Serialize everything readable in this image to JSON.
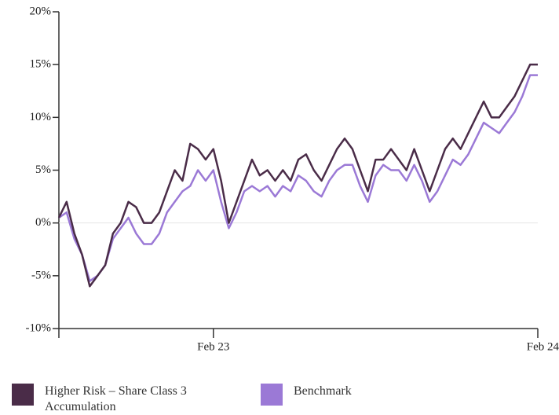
{
  "chart_data": {
    "type": "line",
    "categories": [
      null,
      null,
      null,
      null,
      null,
      null,
      null,
      null,
      null,
      null,
      null,
      null,
      null,
      null,
      null,
      null,
      null,
      null,
      null,
      null,
      "Feb 23",
      null,
      null,
      null,
      null,
      null,
      null,
      null,
      null,
      null,
      null,
      null,
      null,
      null,
      null,
      null,
      null,
      null,
      null,
      null,
      null,
      null,
      null,
      null,
      null,
      null,
      null,
      null,
      null,
      null,
      null,
      null,
      null,
      null,
      null,
      null,
      null,
      null,
      null,
      null,
      null,
      null,
      "Feb 24"
    ],
    "series": [
      {
        "name": "Higher Risk – Share Class 3 Accumulation",
        "color": "#4a2c48",
        "values": [
          0.5,
          2,
          -1,
          -3,
          -6,
          -5,
          -4,
          -1,
          0,
          2,
          1.5,
          0,
          0,
          1,
          3,
          5,
          4,
          7.5,
          7,
          6,
          7,
          4,
          0,
          2,
          4,
          6,
          4.5,
          5,
          4,
          5,
          4,
          6,
          6.5,
          5,
          4,
          5.5,
          7,
          8,
          7,
          5,
          3,
          6,
          6,
          7,
          6,
          5,
          7,
          5,
          3,
          5,
          7,
          8,
          7,
          8.5,
          10,
          11.5,
          10,
          10,
          11,
          12,
          13.5,
          15,
          15
        ]
      },
      {
        "name": "Benchmark",
        "color": "#9b79d6",
        "values": [
          0.5,
          1,
          -1.5,
          -3,
          -5.5,
          -5,
          -4,
          -1.5,
          -0.5,
          0.5,
          -1,
          -2,
          -2,
          -1,
          1,
          2,
          3,
          3.5,
          5,
          4,
          5,
          2,
          -0.5,
          1,
          3,
          3.5,
          3,
          3.5,
          2.5,
          3.5,
          3,
          4.5,
          4,
          3,
          2.5,
          4,
          5,
          5.5,
          5.5,
          3.5,
          2,
          4.5,
          5.5,
          5,
          5,
          4,
          5.5,
          4,
          2,
          3,
          4.5,
          6,
          5.5,
          6.5,
          8,
          9.5,
          9,
          8.5,
          9.5,
          10.5,
          12,
          14,
          14
        ]
      }
    ],
    "ylim": [
      -10,
      20
    ],
    "yticks": [
      {
        "value": -10,
        "label": "-10%"
      },
      {
        "value": -5,
        "label": "-5%"
      },
      {
        "value": 0,
        "label": "0%"
      },
      {
        "value": 5,
        "label": "5%"
      },
      {
        "value": 10,
        "label": "10%"
      },
      {
        "value": 15,
        "label": "15%"
      },
      {
        "value": 20,
        "label": "20%"
      }
    ],
    "zero_line": true
  }
}
